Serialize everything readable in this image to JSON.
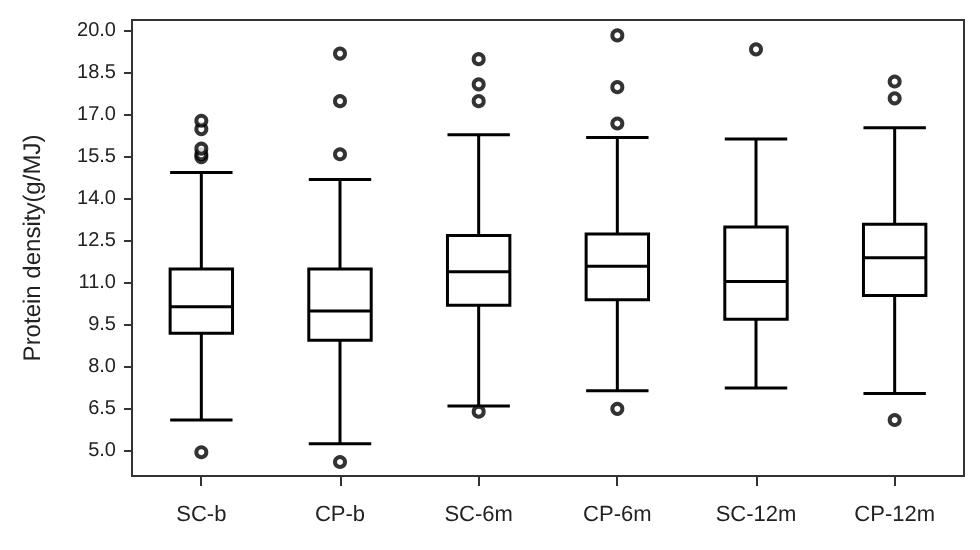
{
  "chart_data": {
    "type": "box",
    "ylabel": "Protein density(g/MJ)",
    "categories": [
      "SC-b",
      "CP-b",
      "SC-6m",
      "CP-6m",
      "SC-12m",
      "CP-12m"
    ],
    "color": "#000000",
    "ylim": [
      4.1,
      20.4
    ],
    "yticks": [
      {
        "value": 5,
        "label": "5.0"
      },
      {
        "value": 6.5,
        "label": "6.5"
      },
      {
        "value": 8,
        "label": "8.0"
      },
      {
        "value": 9.5,
        "label": "9.5"
      },
      {
        "value": 11,
        "label": "11.0"
      },
      {
        "value": 12.5,
        "label": "12.5"
      },
      {
        "value": 14,
        "label": "14.0"
      },
      {
        "value": 15.5,
        "label": "15.5"
      },
      {
        "value": 17,
        "label": "17.0"
      },
      {
        "value": 18.5,
        "label": "18.5"
      },
      {
        "value": 20,
        "label": "20.0"
      }
    ],
    "grid": false,
    "boxes": [
      {
        "low": 6.1,
        "q1": 9.2,
        "median": 10.15,
        "q3": 11.5,
        "high": 14.95,
        "outliers": [
          4.95,
          15.5,
          15.6,
          15.8,
          16.5,
          16.8
        ]
      },
      {
        "low": 5.25,
        "q1": 8.95,
        "median": 10.0,
        "q3": 11.5,
        "high": 14.7,
        "outliers": [
          4.6,
          15.6,
          17.5,
          19.2
        ]
      },
      {
        "low": 6.6,
        "q1": 10.2,
        "median": 11.4,
        "q3": 12.7,
        "high": 16.3,
        "outliers": [
          6.4,
          17.5,
          18.1,
          19.0
        ]
      },
      {
        "low": 7.15,
        "q1": 10.4,
        "median": 11.6,
        "q3": 12.75,
        "high": 16.2,
        "outliers": [
          6.5,
          16.7,
          18.0,
          19.85
        ]
      },
      {
        "low": 7.25,
        "q1": 9.7,
        "median": 11.05,
        "q3": 13.0,
        "high": 16.15,
        "outliers": [
          19.35
        ]
      },
      {
        "low": 7.05,
        "q1": 10.55,
        "median": 11.9,
        "q3": 13.1,
        "high": 16.55,
        "outliers": [
          6.1,
          17.6,
          18.2
        ]
      }
    ]
  }
}
